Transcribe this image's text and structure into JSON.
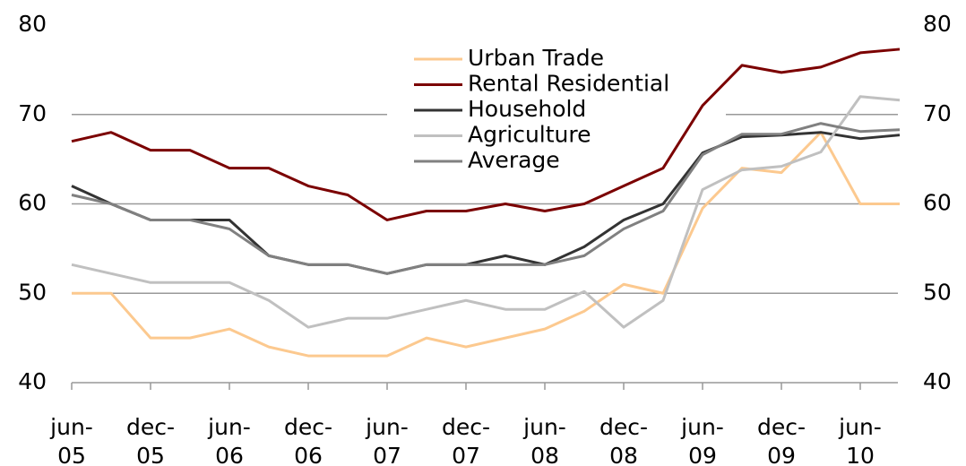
{
  "chart_data": {
    "type": "line",
    "categories": [
      "jun-05",
      null,
      "dec-05",
      null,
      "jun-06",
      null,
      "dec-06",
      null,
      "jun-07",
      null,
      "dec-07",
      null,
      "jun-08",
      null,
      "dec-08",
      null,
      "jun-09",
      null,
      "dec-09",
      null,
      "jun-10",
      null
    ],
    "series": [
      {
        "name": "Urban Trade",
        "color": "#fcc98f",
        "values": [
          50,
          50,
          45,
          45,
          46,
          44,
          43,
          43,
          43,
          45,
          44,
          45,
          46,
          48,
          51,
          50,
          59.5,
          64,
          63.5,
          68,
          60,
          60
        ]
      },
      {
        "name": "Rental Residential",
        "color": "#7b0000",
        "values": [
          67,
          68,
          66,
          66,
          64,
          64,
          62,
          61,
          58.2,
          59.2,
          59.2,
          60,
          59.2,
          60,
          62,
          64,
          71,
          75.5,
          74.7,
          75.3,
          76.9,
          77.3
        ]
      },
      {
        "name": "Household",
        "color": "#333333",
        "values": [
          62,
          60,
          58.2,
          58.2,
          58.2,
          54.2,
          53.2,
          53.2,
          52.2,
          53.2,
          53.2,
          54.2,
          53.2,
          55.2,
          58.2,
          60,
          65.7,
          67.5,
          67.7,
          68,
          67.3,
          67.7
        ]
      },
      {
        "name": "Agriculture",
        "color": "#c0c0c0",
        "values": [
          53.2,
          52.2,
          51.2,
          51.2,
          51.2,
          49.2,
          46.2,
          47.2,
          47.2,
          48.2,
          49.2,
          48.2,
          48.2,
          50.2,
          46.2,
          49.2,
          61.6,
          63.8,
          64.2,
          65.8,
          72,
          71.6
        ]
      },
      {
        "name": "Average",
        "color": "#808080",
        "values": [
          61,
          60,
          58.2,
          58.2,
          57.2,
          54.2,
          53.2,
          53.2,
          52.2,
          53.2,
          53.2,
          53.2,
          53.2,
          54.2,
          57.2,
          59.2,
          65.5,
          67.8,
          67.8,
          69,
          68.1,
          68.3
        ]
      }
    ],
    "ylim": [
      40,
      80
    ],
    "yticks": [
      40,
      50,
      60,
      70,
      80
    ],
    "y2lim": [
      40,
      80
    ],
    "y2ticks": [
      40,
      50,
      60,
      70,
      80
    ],
    "grid": true,
    "legend": "top"
  }
}
